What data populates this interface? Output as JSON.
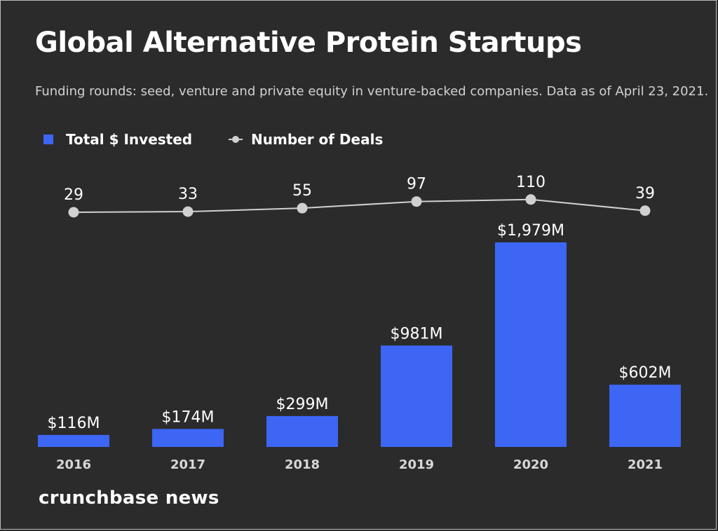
{
  "title": "Global Alternative Protein Startups",
  "subtitle": "Funding rounds: seed, venture and private equity in venture-backed companies. Data as of April 23, 2021.",
  "legend": {
    "bars_label": "Total $ Invested",
    "line_label": "Number of Deals"
  },
  "brand": "crunchbase news",
  "colors": {
    "background": "#2b2b2b",
    "bar": "#3d66f5",
    "line": "#d0d0d0",
    "text": "#ffffff"
  },
  "chart_data": {
    "type": "bar",
    "categories": [
      "2016",
      "2017",
      "2018",
      "2019",
      "2020",
      "2021"
    ],
    "series": [
      {
        "name": "Total $ Invested",
        "type": "bar",
        "values": [
          116,
          174,
          299,
          981,
          1979,
          602
        ],
        "labels": [
          "$116M",
          "$174M",
          "$299M",
          "$981M",
          "$1,979M",
          "$602M"
        ]
      },
      {
        "name": "Number of Deals",
        "type": "line",
        "values": [
          29,
          33,
          55,
          97,
          110,
          39
        ],
        "labels": [
          "29",
          "33",
          "55",
          "97",
          "110",
          "39"
        ]
      }
    ],
    "title": "Global Alternative Protein Startups",
    "legend_position": "top-left",
    "grid": false
  }
}
